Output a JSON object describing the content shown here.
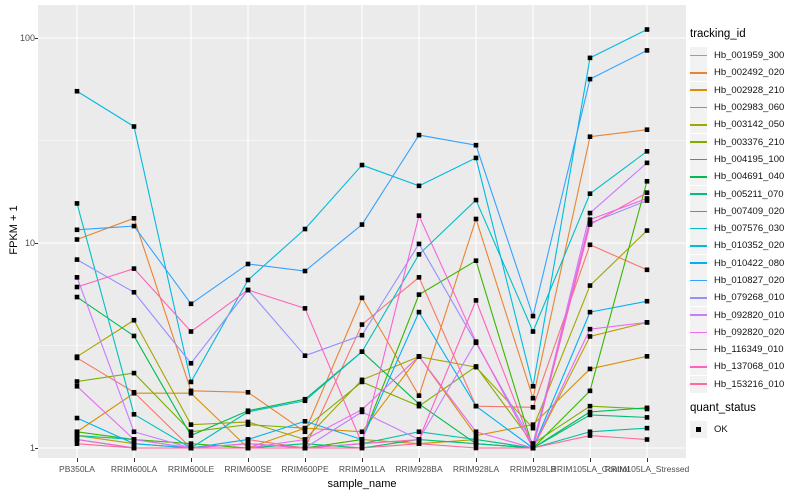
{
  "figure": {
    "background": "#FFFFFF",
    "panel_background": "#EBEBEB",
    "grid_color": "#FFFFFF",
    "tick_label_color": "#4D4D4D",
    "axis_title_color": "#000000",
    "point_color": "#000000"
  },
  "axes": {
    "x": {
      "title": "sample_name"
    },
    "y": {
      "title": "FPKM + 1",
      "scale": "log10",
      "ticks": [
        {
          "label": "100",
          "value": 100
        },
        {
          "label": "10",
          "value": 10
        },
        {
          "label": "1",
          "value": 1
        }
      ],
      "minor_breaks": [
        3.1623,
        31.623
      ]
    }
  },
  "legend": {
    "tracking_title": "tracking_id",
    "quant_title": "quant_status",
    "quant_entries": [
      {
        "label": "OK",
        "marker": "square",
        "color": "#000000"
      }
    ]
  },
  "chart_data": {
    "type": "line",
    "title": "",
    "xlabel": "sample_name",
    "ylabel": "FPKM + 1",
    "y_scale": "log10",
    "ylim": [
      1,
      145
    ],
    "grid": true,
    "legend_position": "right",
    "point_marker": {
      "shape": "square",
      "color": "#000000",
      "meaning": "quant_status OK"
    },
    "categories": [
      "PB350LA",
      "RRIM600LA",
      "RRIM600LE",
      "RRIM600SE",
      "RRIM600PE",
      "RRIM901LA",
      "RRIM928BA",
      "RRIM928LA",
      "RRIM928LB",
      "RRIM105LA_Control",
      "RRIM105LA_Stressed"
    ],
    "series": [
      {
        "id": "Hb_001959_300",
        "color": "#F8766D",
        "values": [
          2.75,
          1.87,
          1.0,
          1.1,
          1.0,
          4.0,
          6.8,
          1.6,
          1.58,
          9.8,
          7.4
        ]
      },
      {
        "id": "Hb_002492_020",
        "color": "#EA8331",
        "values": [
          10.4,
          13.2,
          1.9,
          1.87,
          1.2,
          5.4,
          1.8,
          13.1,
          1.75,
          33.0,
          35.7
        ]
      },
      {
        "id": "Hb_002928_210",
        "color": "#D89000",
        "values": [
          1.2,
          1.85,
          1.85,
          1.0,
          1.25,
          1.2,
          2.8,
          1.15,
          1.3,
          2.43,
          2.8
        ]
      },
      {
        "id": "Hb_002983_060",
        "color": "#C09B00",
        "values": [
          1.15,
          1.05,
          1.0,
          1.0,
          1.0,
          1.1,
          1.05,
          1.1,
          1.0,
          3.5,
          4.1
        ]
      },
      {
        "id": "Hb_003142_050",
        "color": "#A3A500",
        "values": [
          2.79,
          4.2,
          1.3,
          1.34,
          1.1,
          2.15,
          2.79,
          2.48,
          1.25,
          6.2,
          11.5
        ]
      },
      {
        "id": "Hb_003376_210",
        "color": "#7CAE00",
        "values": [
          2.11,
          2.32,
          1.2,
          1.3,
          1.25,
          2.1,
          1.6,
          2.5,
          1.05,
          1.6,
          1.55
        ]
      },
      {
        "id": "Hb_004195_100",
        "color": "#39B600",
        "values": [
          1.2,
          1.1,
          1.05,
          1.0,
          1.0,
          1.1,
          5.6,
          8.2,
          1.0,
          1.9,
          20.0
        ]
      },
      {
        "id": "Hb_004691_040",
        "color": "#00BB4E",
        "values": [
          5.45,
          3.52,
          1.15,
          1.52,
          1.73,
          2.95,
          1.64,
          1.05,
          1.0,
          1.5,
          1.57
        ]
      },
      {
        "id": "Hb_005211_070",
        "color": "#00BF7D",
        "values": [
          1.1,
          1.0,
          1.0,
          1.0,
          1.05,
          1.0,
          1.1,
          1.05,
          1.0,
          1.45,
          1.41
        ]
      },
      {
        "id": "Hb_007409_020",
        "color": "#00C1A3",
        "values": [
          1.15,
          1.1,
          1.0,
          1.05,
          1.0,
          1.05,
          1.2,
          1.1,
          1.0,
          1.2,
          1.25
        ]
      },
      {
        "id": "Hb_007576_030",
        "color": "#00BFC4",
        "values": [
          15.6,
          1.46,
          1.0,
          1.5,
          1.7,
          2.95,
          8.8,
          16.2,
          3.7,
          17.4,
          28.0
        ]
      },
      {
        "id": "Hb_010352_020",
        "color": "#00BAE0",
        "values": [
          55.0,
          37.0,
          2.1,
          6.6,
          11.7,
          24.0,
          19.0,
          26.0,
          2.0,
          80.0,
          110.0
        ]
      },
      {
        "id": "Hb_010422_080",
        "color": "#00B0F6",
        "values": [
          1.4,
          1.05,
          1.0,
          1.1,
          1.35,
          1.1,
          4.6,
          1.6,
          1.0,
          4.6,
          5.2
        ]
      },
      {
        "id": "Hb_010827_020",
        "color": "#35A2FF",
        "values": [
          11.6,
          12.1,
          5.05,
          7.9,
          7.3,
          12.3,
          33.6,
          30.0,
          4.4,
          63.0,
          87.0
        ]
      },
      {
        "id": "Hb_079268_010",
        "color": "#9590FF",
        "values": [
          8.3,
          5.75,
          2.59,
          5.9,
          2.82,
          3.55,
          9.9,
          3.26,
          1.05,
          12.5,
          16.1
        ]
      },
      {
        "id": "Hb_092820_010",
        "color": "#C77CFF",
        "values": [
          6.8,
          1.2,
          1.0,
          1.0,
          1.0,
          1.5,
          1.1,
          3.3,
          1.0,
          14.0,
          24.6
        ]
      },
      {
        "id": "Hb_092820_020",
        "color": "#E76BF3",
        "values": [
          2.0,
          1.1,
          1.0,
          1.0,
          1.1,
          1.54,
          2.8,
          1.2,
          1.0,
          3.8,
          4.1
        ]
      },
      {
        "id": "Hb_116349_010",
        "color": "#FA62DB",
        "values": [
          1.1,
          1.0,
          1.0,
          1.05,
          1.0,
          1.05,
          13.6,
          3.3,
          1.0,
          13.0,
          16.5
        ]
      },
      {
        "id": "Hb_137068_010",
        "color": "#FF62BC",
        "values": [
          6.1,
          7.5,
          3.7,
          5.9,
          4.8,
          1.05,
          1.1,
          5.25,
          1.0,
          12.3,
          17.6
        ]
      },
      {
        "id": "Hb_153216_010",
        "color": "#FF6A98",
        "values": [
          1.05,
          1.0,
          1.0,
          1.0,
          1.0,
          1.0,
          1.05,
          1.0,
          1.0,
          1.15,
          1.1
        ]
      }
    ]
  }
}
